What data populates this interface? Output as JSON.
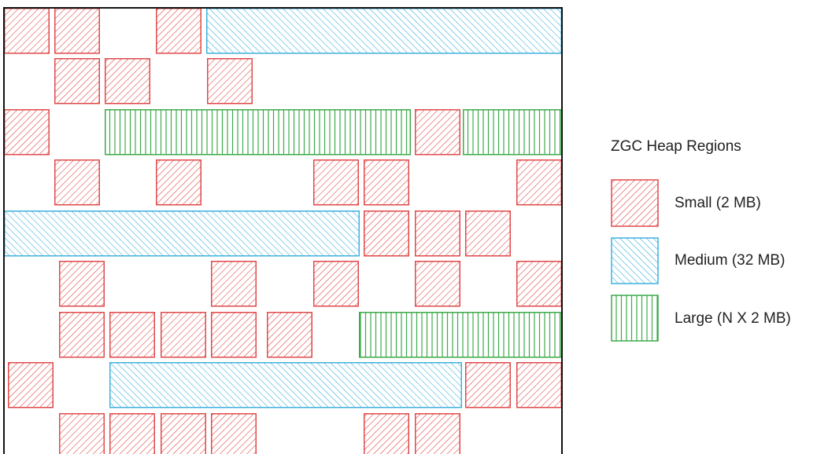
{
  "legend": {
    "title": "ZGC Heap Regions",
    "items": [
      {
        "label": "Small (2 MB)"
      },
      {
        "label": "Medium (32 MB)"
      },
      {
        "label": "Large (N X 2 MB)"
      }
    ]
  }
}
